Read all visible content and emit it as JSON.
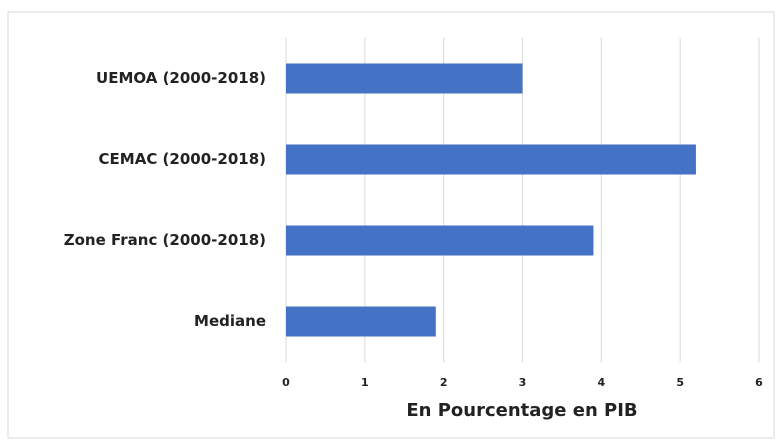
{
  "chart_data": {
    "type": "bar",
    "orientation": "horizontal",
    "categories": [
      "UEMOA (2000-2018)",
      "CEMAC (2000-2018)",
      "Zone Franc (2000-2018)",
      "Mediane"
    ],
    "values": [
      3.0,
      5.2,
      3.9,
      1.9
    ],
    "color": "#4472c4",
    "x_label": "En Pourcentage en PIB",
    "xlim": [
      0,
      6
    ],
    "xticks": [
      0,
      1,
      2,
      3,
      4,
      5,
      6
    ],
    "grid": true
  }
}
